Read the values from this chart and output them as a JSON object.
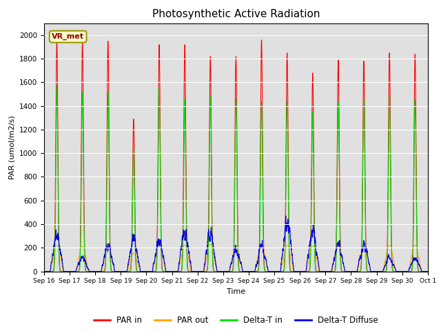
{
  "title": "Photosynthetic Active Radiation",
  "xlabel": "Time",
  "ylabel": "PAR (umol/m2/s)",
  "annotation": "VR_met",
  "x_tick_labels": [
    "Sep 16",
    "Sep 17",
    "Sep 18",
    "Sep 19",
    "Sep 20",
    "Sep 21",
    "Sep 22",
    "Sep 23",
    "Sep 24",
    "Sep 25",
    "Sep 26",
    "Sep 27",
    "Sep 28",
    "Sep 29",
    "Sep 30",
    "Oct 1"
  ],
  "ylim": [
    0,
    2100
  ],
  "yticks": [
    0,
    200,
    400,
    600,
    800,
    1000,
    1200,
    1400,
    1600,
    1800,
    2000
  ],
  "color_par_in": "#ff0000",
  "color_par_out": "#ffa500",
  "color_delta_t_in": "#00dd00",
  "color_delta_t_diffuse": "#0000dd",
  "legend_labels": [
    "PAR in",
    "PAR out",
    "Delta-T in",
    "Delta-T Diffuse"
  ],
  "background_color": "#e0e0e0",
  "n_days": 15,
  "par_in_peaks": [
    1950,
    1940,
    1950,
    1290,
    1920,
    1920,
    1820,
    1820,
    1960,
    1850,
    1680,
    1790,
    1780,
    1850,
    1840
  ],
  "par_out_peaks": [
    220,
    210,
    230,
    150,
    230,
    220,
    230,
    220,
    220,
    220,
    215,
    220,
    220,
    220,
    220
  ],
  "delta_t_in_peaks": [
    1570,
    1520,
    1520,
    1030,
    1550,
    1460,
    1480,
    1460,
    1440,
    1440,
    1350,
    1430,
    1450,
    1490,
    1450
  ],
  "delta_t_diffuse_peaks": [
    400,
    160,
    290,
    355,
    330,
    430,
    450,
    255,
    270,
    530,
    450,
    290,
    290,
    150,
    150
  ]
}
